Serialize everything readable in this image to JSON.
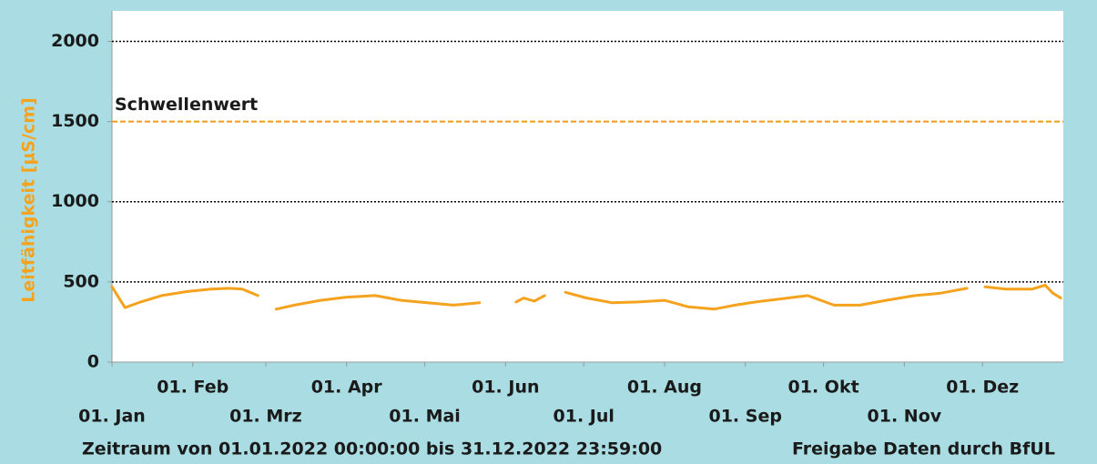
{
  "chart_data": {
    "type": "line",
    "y_label": "Leitfähigkeit [µS/cm]",
    "footer_left": "Zeitraum von 01.01.2022 00:00:00 bis 31.12.2022 23:59:00",
    "footer_right": "Freigabe Daten durch BfUL",
    "threshold": {
      "value": 1500,
      "label": "Schwellenwert",
      "color": "#f39a1e"
    },
    "ylim": [
      0,
      2190
    ],
    "yticks": [
      0,
      500,
      1000,
      1500,
      2000
    ],
    "grid": true,
    "xlim": [
      "2022-01-01T00:00",
      "2022-12-31T23:59"
    ],
    "xticks": [
      {
        "value": "2022-01-01",
        "label": "01. Jan"
      },
      {
        "value": "2022-02-01",
        "label": "01. Feb"
      },
      {
        "value": "2022-03-01",
        "label": "01. Mrz"
      },
      {
        "value": "2022-04-01",
        "label": "01. Apr"
      },
      {
        "value": "2022-05-01",
        "label": "01. Mai"
      },
      {
        "value": "2022-06-01",
        "label": "01. Jun"
      },
      {
        "value": "2022-07-01",
        "label": "01. Jul"
      },
      {
        "value": "2022-08-01",
        "label": "01. Aug"
      },
      {
        "value": "2022-09-01",
        "label": "01. Sep"
      },
      {
        "value": "2022-10-01",
        "label": "01. Okt"
      },
      {
        "value": "2022-11-01",
        "label": "01. Nov"
      },
      {
        "value": "2022-12-01",
        "label": "01. Dez"
      }
    ],
    "x": [
      "2022-01-01",
      "2022-01-06",
      "2022-01-12",
      "2022-01-20",
      "2022-01-30",
      "2022-02-08",
      "2022-02-15",
      "2022-02-20",
      "2022-02-26",
      "2022-03-01",
      "2022-03-05",
      "2022-03-12",
      "2022-03-22",
      "2022-04-01",
      "2022-04-12",
      "2022-04-22",
      "2022-05-02",
      "2022-05-12",
      "2022-05-22",
      "2022-05-26",
      "2022-05-30",
      "2022-06-02",
      "2022-06-05",
      "2022-06-08",
      "2022-06-12",
      "2022-06-16",
      "2022-06-20",
      "2022-06-24",
      "2022-07-02",
      "2022-07-12",
      "2022-07-22",
      "2022-08-01",
      "2022-08-10",
      "2022-08-20",
      "2022-08-28",
      "2022-09-05",
      "2022-09-15",
      "2022-09-25",
      "2022-10-05",
      "2022-10-15",
      "2022-10-25",
      "2022-11-05",
      "2022-11-15",
      "2022-11-25",
      "2022-11-29",
      "2022-12-02",
      "2022-12-10",
      "2022-12-20",
      "2022-12-25",
      "2022-12-28",
      "2022-12-31"
    ],
    "series": [
      {
        "name": "Leitfähigkeit",
        "color": "#f5a31f",
        "values": [
          470,
          340,
          375,
          415,
          440,
          455,
          460,
          455,
          415,
          null,
          330,
          355,
          385,
          405,
          415,
          385,
          370,
          355,
          370,
          null,
          370,
          null,
          375,
          400,
          380,
          415,
          null,
          435,
          400,
          370,
          375,
          385,
          345,
          330,
          355,
          375,
          395,
          415,
          355,
          355,
          385,
          415,
          430,
          460,
          null,
          470,
          455,
          455,
          480,
          430,
          400
        ]
      }
    ]
  }
}
